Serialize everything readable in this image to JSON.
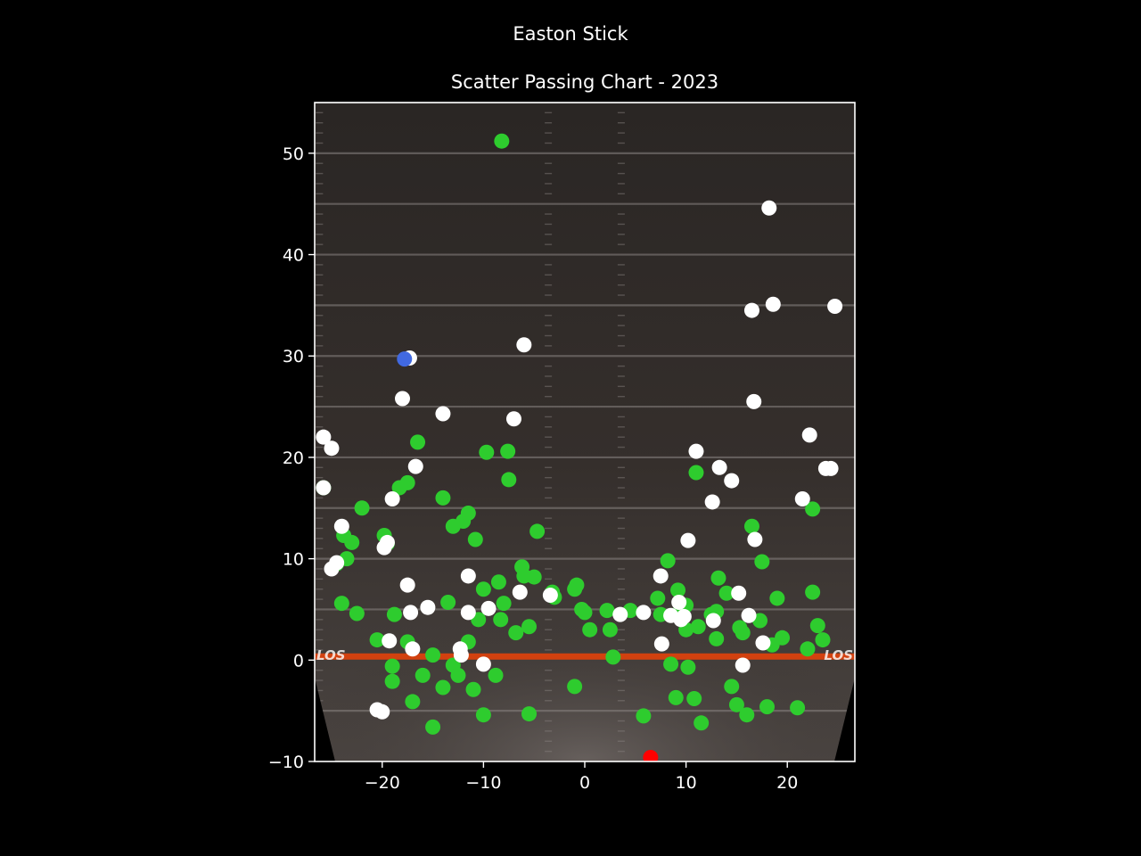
{
  "chart_data": {
    "type": "scatter",
    "title": "Easton Stick",
    "subtitle": "Scatter Passing Chart - 2023",
    "xlim": [
      -26.67,
      26.67
    ],
    "ylim": [
      -10,
      55
    ],
    "x_ticks": [
      -20,
      -10,
      0,
      10,
      20
    ],
    "x_tick_labels": [
      "−20",
      "−10",
      "0",
      "10",
      "20"
    ],
    "y_ticks": [
      -10,
      0,
      10,
      20,
      30,
      40,
      50
    ],
    "y_tick_labels": [
      "−10",
      "0",
      "10",
      "20",
      "30",
      "40",
      "50"
    ],
    "field_marker_left": "LOS",
    "field_marker_right": "LOS",
    "grid": false,
    "background": "football field",
    "colors": {
      "completion": "#2ecc2e",
      "incompletion": "#ffffff",
      "touchdown": "#4169e1",
      "interception": "#ff0000",
      "los_line": "#d2410f"
    },
    "series": [
      {
        "category": "completion",
        "points": [
          [
            -25.8,
            17
          ],
          [
            -24.5,
            9.5
          ],
          [
            -24,
            5.6
          ],
          [
            -23.8,
            12.3
          ],
          [
            -23.5,
            10
          ],
          [
            -23,
            11.6
          ],
          [
            -22.5,
            4.6
          ],
          [
            -22,
            15
          ],
          [
            -20.5,
            2
          ],
          [
            -19.8,
            12.3
          ],
          [
            -19.5,
            11.5
          ],
          [
            -19,
            -0.6
          ],
          [
            -19,
            -2.1
          ],
          [
            -18.8,
            4.5
          ],
          [
            -18.3,
            17
          ],
          [
            -17.5,
            17.5
          ],
          [
            -17.5,
            1.8
          ],
          [
            -17,
            -4.1
          ],
          [
            -16.5,
            21.5
          ],
          [
            -16,
            -1.5
          ],
          [
            -15,
            0.5
          ],
          [
            -15,
            -6.6
          ],
          [
            -14,
            16
          ],
          [
            -14,
            -2.7
          ],
          [
            -13.5,
            5.7
          ],
          [
            -13,
            13.2
          ],
          [
            -13,
            -0.5
          ],
          [
            -12.5,
            -1.5
          ],
          [
            -12,
            13.7
          ],
          [
            -11.5,
            14.5
          ],
          [
            -11.5,
            1.8
          ],
          [
            -11,
            -2.9
          ],
          [
            -10.8,
            11.9
          ],
          [
            -10.5,
            4
          ],
          [
            -10,
            7
          ],
          [
            -10,
            -5.4
          ],
          [
            -9.7,
            20.5
          ],
          [
            -8.8,
            -1.5
          ],
          [
            -8.5,
            7.7
          ],
          [
            -8.2,
            51.2
          ],
          [
            -8.3,
            4
          ],
          [
            -8,
            5.6
          ],
          [
            -7.6,
            20.6
          ],
          [
            -7.5,
            17.8
          ],
          [
            -6.8,
            2.7
          ],
          [
            -6.2,
            9.2
          ],
          [
            -6,
            8.3
          ],
          [
            -5.5,
            3.3
          ],
          [
            -5.5,
            -5.3
          ],
          [
            -5,
            8.2
          ],
          [
            -4.7,
            12.7
          ],
          [
            -3.2,
            6.7
          ],
          [
            -3,
            6.2
          ],
          [
            -1,
            7
          ],
          [
            -0.8,
            7.4
          ],
          [
            -1,
            -2.6
          ],
          [
            -0.3,
            5
          ],
          [
            0,
            4.7
          ],
          [
            0.5,
            3
          ],
          [
            2.2,
            4.9
          ],
          [
            2.5,
            3
          ],
          [
            2.8,
            0.3
          ],
          [
            4.5,
            4.9
          ],
          [
            5.8,
            -5.5
          ],
          [
            7.2,
            6.1
          ],
          [
            7.5,
            4.5
          ],
          [
            8.2,
            9.8
          ],
          [
            8.5,
            -0.4
          ],
          [
            9,
            -3.7
          ],
          [
            9.2,
            6.9
          ],
          [
            9.5,
            5
          ],
          [
            10,
            5.4
          ],
          [
            10,
            3
          ],
          [
            10.2,
            -0.7
          ],
          [
            10.8,
            -3.8
          ],
          [
            11,
            18.5
          ],
          [
            11.2,
            3.3
          ],
          [
            11.5,
            -6.2
          ],
          [
            12.5,
            4.5
          ],
          [
            13,
            4.8
          ],
          [
            13,
            2.1
          ],
          [
            13.2,
            8.1
          ],
          [
            14,
            6.6
          ],
          [
            14.5,
            -2.6
          ],
          [
            15,
            -4.4
          ],
          [
            15.3,
            3.2
          ],
          [
            15.6,
            2.7
          ],
          [
            16,
            -5.4
          ],
          [
            16.5,
            13.2
          ],
          [
            17.3,
            3.9
          ],
          [
            17.5,
            9.7
          ],
          [
            18,
            -4.6
          ],
          [
            18.5,
            1.5
          ],
          [
            19,
            6.1
          ],
          [
            19.5,
            2.2
          ],
          [
            21,
            -4.7
          ],
          [
            22,
            1.1
          ],
          [
            22.5,
            14.9
          ],
          [
            22.5,
            6.7
          ],
          [
            23,
            3.4
          ],
          [
            23.5,
            2
          ]
        ]
      },
      {
        "category": "incompletion",
        "points": [
          [
            -25.8,
            22
          ],
          [
            -25.8,
            17
          ],
          [
            -25,
            20.9
          ],
          [
            -25,
            9
          ],
          [
            -24.5,
            9.6
          ],
          [
            -24,
            13.2
          ],
          [
            -20.5,
            -4.9
          ],
          [
            -20,
            -5.1
          ],
          [
            -19.8,
            11.1
          ],
          [
            -19.5,
            11.6
          ],
          [
            -19.3,
            1.9
          ],
          [
            -19,
            15.9
          ],
          [
            -18,
            25.8
          ],
          [
            -17.3,
            29.8
          ],
          [
            -17.5,
            7.4
          ],
          [
            -17.2,
            4.7
          ],
          [
            -17,
            1.1
          ],
          [
            -16.7,
            19.1
          ],
          [
            -15.5,
            5.2
          ],
          [
            -14,
            24.3
          ],
          [
            -12.3,
            1.1
          ],
          [
            -12.2,
            0.5
          ],
          [
            -11.5,
            8.3
          ],
          [
            -11.5,
            4.7
          ],
          [
            -10,
            -0.4
          ],
          [
            -9.5,
            5.1
          ],
          [
            -7,
            23.8
          ],
          [
            -6.4,
            6.7
          ],
          [
            -6,
            31.1
          ],
          [
            -3.4,
            6.4
          ],
          [
            3.5,
            4.5
          ],
          [
            5.8,
            4.7
          ],
          [
            7.5,
            8.3
          ],
          [
            7.6,
            1.6
          ],
          [
            8.5,
            4.4
          ],
          [
            9.3,
            5.7
          ],
          [
            9.5,
            4
          ],
          [
            9.8,
            4.3
          ],
          [
            10.2,
            11.8
          ],
          [
            11,
            20.6
          ],
          [
            12.6,
            15.6
          ],
          [
            12.7,
            3.9
          ],
          [
            13.3,
            19
          ],
          [
            14.5,
            17.7
          ],
          [
            15.2,
            6.6
          ],
          [
            15.6,
            -0.5
          ],
          [
            16.2,
            4.4
          ],
          [
            16.5,
            34.5
          ],
          [
            16.7,
            25.5
          ],
          [
            16.8,
            11.9
          ],
          [
            17.6,
            1.7
          ],
          [
            18.2,
            44.6
          ],
          [
            18.6,
            35.1
          ],
          [
            21.5,
            15.9
          ],
          [
            22.2,
            22.2
          ],
          [
            23.8,
            18.9
          ],
          [
            24.3,
            18.9
          ],
          [
            24.7,
            34.9
          ]
        ]
      },
      {
        "category": "touchdown",
        "points": [
          [
            -17.8,
            29.7
          ]
        ]
      },
      {
        "category": "interception",
        "points": [
          [
            6.5,
            -9.6
          ]
        ]
      }
    ]
  }
}
